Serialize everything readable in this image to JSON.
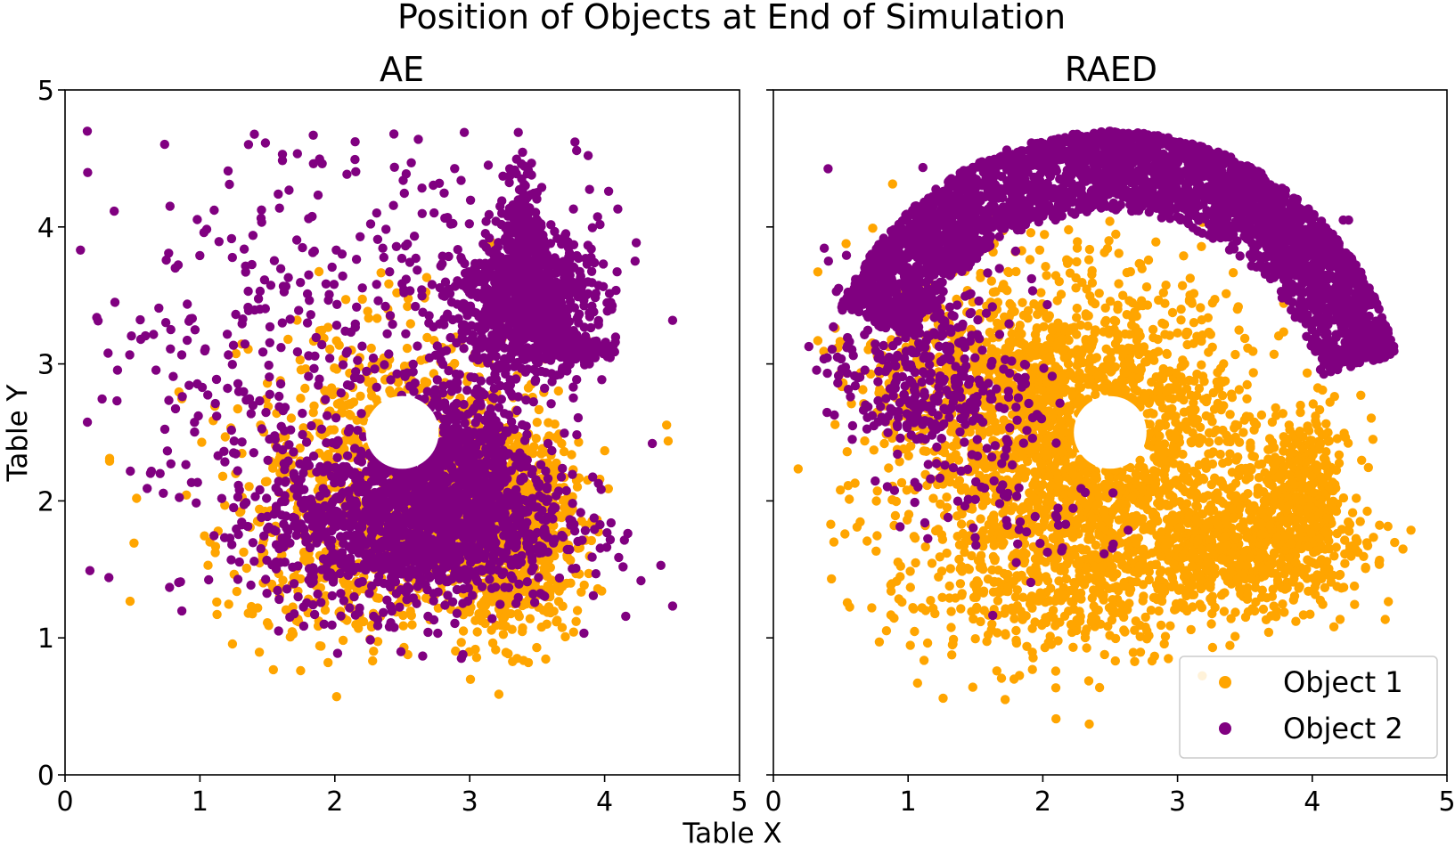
{
  "chart_data": {
    "title": "Position of Objects at End of Simulation",
    "xlabel": "Table X",
    "ylabel": "Table Y",
    "type": "scatter",
    "xlim": [
      0,
      5
    ],
    "ylim": [
      0,
      5
    ],
    "ticks": [
      "0",
      "1",
      "2",
      "3",
      "4",
      "5"
    ],
    "colors": {
      "object1": "#ffa500",
      "object2": "#800080"
    },
    "legend": {
      "placement": "lower-right",
      "panel": "RAED",
      "entries": [
        {
          "label": "Object 1",
          "color": "#ffa500"
        },
        {
          "label": "Object 2",
          "color": "#800080"
        }
      ]
    },
    "panels": [
      {
        "title": "AE",
        "hole": {
          "cx": 2.5,
          "cy": 2.5,
          "r": 0.27
        },
        "series": [
          {
            "name": "Object 1",
            "color": "#ffa500",
            "clusters": [
              {
                "cx": 3.3,
                "cy": 1.75,
                "sx": 0.25,
                "sy": 0.35,
                "n": 900
              },
              {
                "cx": 2.5,
                "cy": 2.4,
                "sx": 0.55,
                "sy": 0.45,
                "n": 600
              },
              {
                "cx": 2.2,
                "cy": 1.6,
                "sx": 0.55,
                "sy": 0.35,
                "n": 350
              }
            ],
            "points": [
              [
                0.33,
                2.31
              ],
              [
                0.33,
                2.29
              ],
              [
                1.95,
                0.82
              ],
              [
                2.26,
                0.99
              ],
              [
                1.06,
                1.53
              ],
              [
                1.72,
                3.32
              ]
            ]
          },
          {
            "name": "Object 2",
            "color": "#800080",
            "clusters": [
              {
                "cx": 3.4,
                "cy": 3.45,
                "sx": 0.25,
                "sy": 0.25,
                "n": 900
              },
              {
                "cx": 3.85,
                "cy": 3.1,
                "sx": 0.12,
                "sy": 0.04,
                "n": 120
              },
              {
                "cx": 3.4,
                "cy": 4.0,
                "sx": 0.07,
                "sy": 0.22,
                "n": 150
              },
              {
                "cx": 2.6,
                "cy": 1.85,
                "sx": 0.55,
                "sy": 0.32,
                "n": 1400
              },
              {
                "cx": 2.9,
                "cy": 2.3,
                "sx": 0.3,
                "sy": 0.3,
                "n": 500
              },
              {
                "cx": 2.2,
                "cy": 3.5,
                "sx": 0.9,
                "sy": 0.75,
                "n": 280
              },
              {
                "cx": 1.3,
                "cy": 2.5,
                "sx": 0.5,
                "sy": 0.6,
                "n": 120
              }
            ],
            "points": [
              [
                0.37,
                3.45
              ],
              [
                1.84,
                4.67
              ],
              [
                2.96,
                4.69
              ],
              [
                3.36,
                4.69
              ],
              [
                3.78,
                4.62
              ],
              [
                4.03,
                4.26
              ],
              [
                1.92,
                1.1
              ]
            ]
          }
        ]
      },
      {
        "title": "RAED",
        "hole": {
          "cx": 2.5,
          "cy": 2.5,
          "r": 0.27
        },
        "series": [
          {
            "name": "Object 1",
            "color": "#ffa500",
            "clusters": [
              {
                "cx": 2.3,
                "cy": 2.4,
                "sx": 0.6,
                "sy": 0.6,
                "n": 2200
              },
              {
                "cx": 3.5,
                "cy": 1.7,
                "sx": 0.45,
                "sy": 0.25,
                "n": 700
              },
              {
                "cx": 3.95,
                "cy": 2.1,
                "sx": 0.15,
                "sy": 0.3,
                "n": 250
              },
              {
                "cx": 2.0,
                "cy": 1.3,
                "sx": 0.6,
                "sy": 0.25,
                "n": 250
              },
              {
                "cx": 1.3,
                "cy": 2.9,
                "sx": 0.4,
                "sy": 0.5,
                "n": 300
              }
            ],
            "points": [
              [
                0.33,
                3.17
              ],
              [
                0.73,
                1.22
              ],
              [
                1.07,
                0.67
              ],
              [
                1.26,
                0.56
              ],
              [
                1.48,
                0.64
              ],
              [
                1.72,
                0.55
              ],
              [
                3.26,
                0.93
              ]
            ]
          },
          {
            "name": "Object 2",
            "color": "#800080",
            "arcs": [
              {
                "cx": 2.5,
                "cy": 2.5,
                "r1": 1.6,
                "r2": 2.2,
                "a1": 15,
                "a2": 155,
                "n": 3200
              }
            ],
            "clusters": [
              {
                "cx": 1.0,
                "cy": 3.0,
                "sx": 0.3,
                "sy": 0.4,
                "n": 350
              },
              {
                "cx": 1.6,
                "cy": 2.7,
                "sx": 0.3,
                "sy": 0.5,
                "n": 120
              },
              {
                "cx": 2.1,
                "cy": 1.8,
                "sx": 0.25,
                "sy": 0.2,
                "n": 25
              }
            ],
            "points": [
              [
                4.23,
                4.05
              ],
              [
                4.27,
                4.05
              ],
              [
                3.76,
                4.24
              ],
              [
                3.99,
                4.07
              ]
            ]
          }
        ]
      }
    ]
  }
}
